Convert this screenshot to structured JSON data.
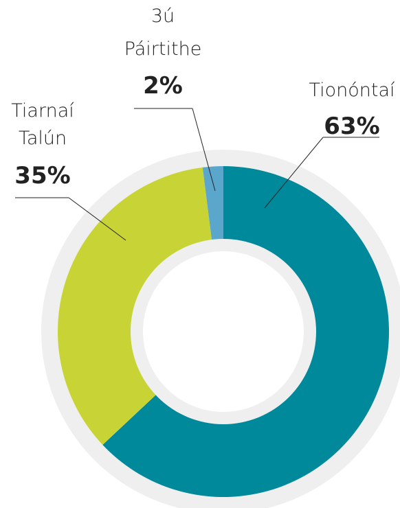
{
  "chart_data": {
    "type": "donut",
    "categories": [
      "Tionóntaí",
      "Tiarnaí\nTalún",
      "3ú\nPáirtithe"
    ],
    "values": [
      63,
      35,
      2
    ],
    "value_labels": [
      "63%",
      "35%",
      "2%"
    ],
    "colors": [
      "#00899b",
      "#c8d435",
      "#5ba7cc"
    ]
  }
}
